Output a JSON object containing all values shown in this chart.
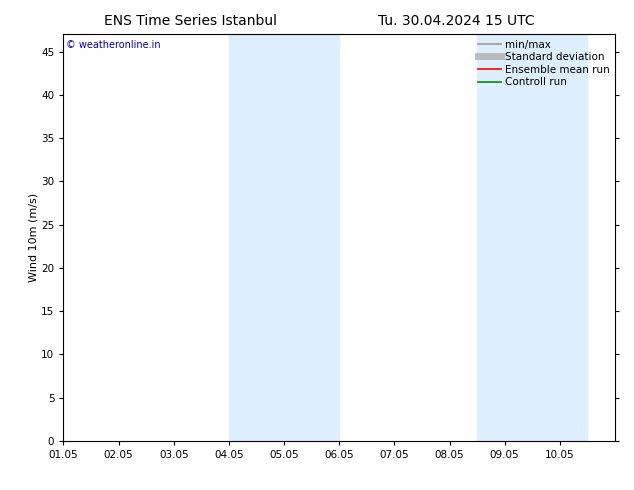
{
  "title_left": "ENS Time Series Istanbul",
  "title_right": "Tu. 30.04.2024 15 UTC",
  "ylabel": "Wind 10m (m/s)",
  "watermark": "© weatheronline.in",
  "watermark_color": "#0000cc",
  "xlim_start": 0,
  "xlim_end": 10,
  "ylim": [
    0,
    47
  ],
  "yticks": [
    0,
    5,
    10,
    15,
    20,
    25,
    30,
    35,
    40,
    45
  ],
  "xtick_labels": [
    "01.05",
    "02.05",
    "03.05",
    "04.05",
    "05.05",
    "06.05",
    "07.05",
    "08.05",
    "09.05",
    "10.05"
  ],
  "xtick_positions": [
    0,
    1,
    2,
    3,
    4,
    5,
    6,
    7,
    8,
    9
  ],
  "shaded_regions": [
    {
      "x_start": 3.0,
      "x_end": 5.0,
      "color": "#ddeeff"
    },
    {
      "x_start": 7.5,
      "x_end": 9.5,
      "color": "#ddeeff"
    }
  ],
  "legend_items": [
    {
      "label": "min/max",
      "color": "#999999",
      "linestyle": "-",
      "linewidth": 1.2
    },
    {
      "label": "Standard deviation",
      "color": "#bbbbbb",
      "linestyle": "-",
      "linewidth": 5
    },
    {
      "label": "Ensemble mean run",
      "color": "#ff0000",
      "linestyle": "-",
      "linewidth": 1.2
    },
    {
      "label": "Controll run",
      "color": "#008800",
      "linestyle": "-",
      "linewidth": 1.2
    }
  ],
  "bg_color": "#ffffff",
  "grid_color": "#cccccc",
  "tick_color": "#000000",
  "title_fontsize": 10,
  "axis_label_fontsize": 8,
  "tick_fontsize": 7.5,
  "legend_fontsize": 7.5,
  "watermark_fontsize": 7
}
